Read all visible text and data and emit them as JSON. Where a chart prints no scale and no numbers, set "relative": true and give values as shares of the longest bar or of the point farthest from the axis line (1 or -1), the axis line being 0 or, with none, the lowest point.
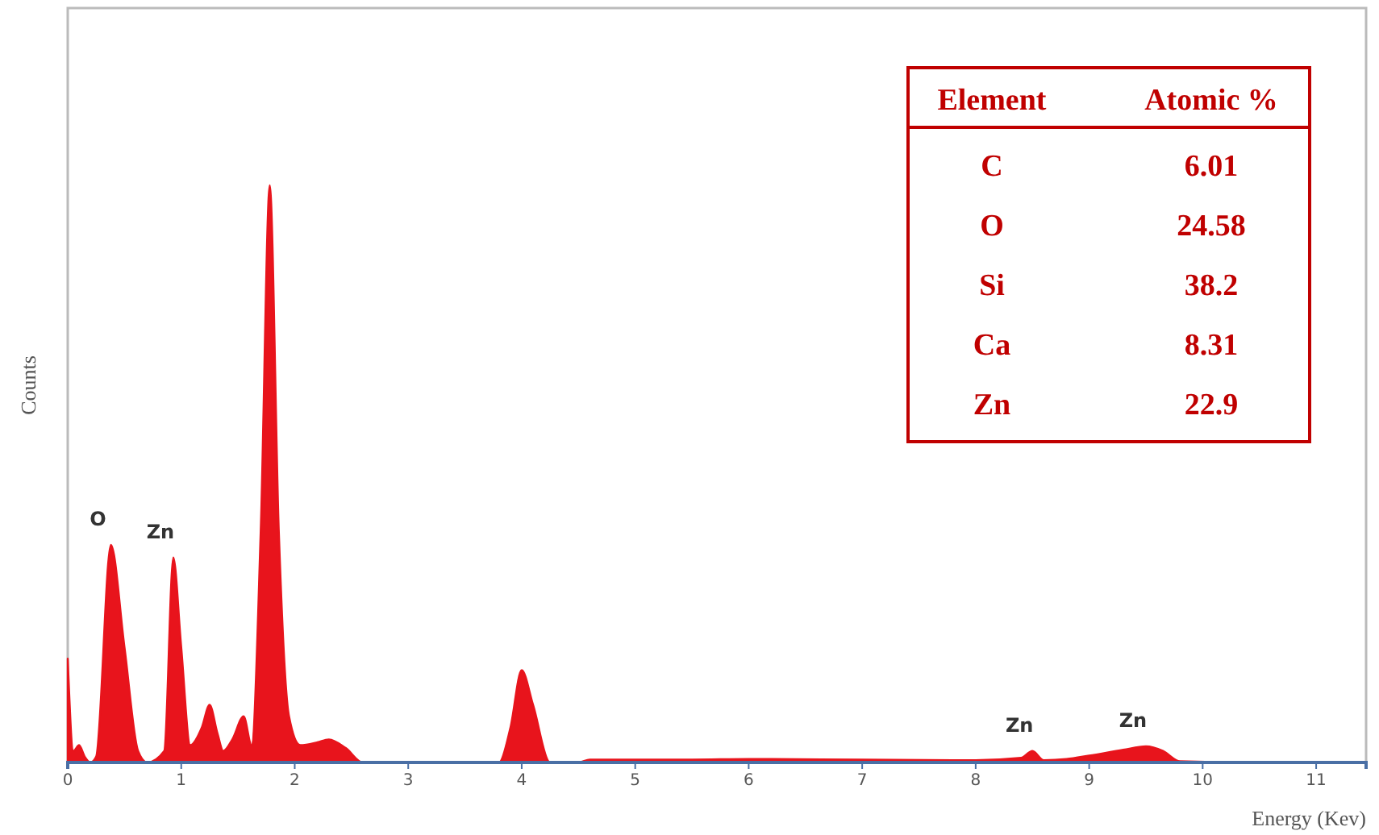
{
  "chart_data": [
    {
      "type": "area",
      "relative": true,
      "xlabel": "Energy (Kev)",
      "ylabel": "Counts",
      "xlim": [
        0,
        11.44
      ],
      "xticks": [
        0,
        1,
        2,
        3,
        4,
        5,
        6,
        7,
        8,
        9,
        10,
        11
      ],
      "grid": false,
      "series": [
        {
          "color": "#e8141c",
          "x": [
            0,
            0.05,
            0.1,
            0.15,
            0.2,
            0.25,
            0.38,
            0.5,
            0.62,
            0.7,
            0.85,
            0.93,
            1.0,
            1.08,
            1.18,
            1.25,
            1.32,
            1.37,
            1.45,
            1.55,
            1.62,
            1.7,
            1.78,
            1.86,
            1.95,
            2.05,
            2.2,
            2.3,
            2.45,
            2.6,
            3.0,
            3.8,
            3.9,
            4.0,
            4.1,
            4.25,
            4.5,
            4.6,
            5.5,
            6,
            7,
            8,
            8.4,
            8.5,
            8.6,
            8.8,
            9.0,
            9.3,
            9.5,
            9.65,
            9.8,
            10.5,
            11.44
          ],
          "values": [
            0.18,
            0.02,
            0.03,
            0.01,
            0,
            0.01,
            0.377,
            0.2,
            0.02,
            0,
            0.02,
            0.355,
            0.2,
            0.03,
            0.06,
            0.1,
            0.05,
            0.02,
            0.04,
            0.08,
            0.03,
            0.4,
            1,
            0.4,
            0.08,
            0.03,
            0.035,
            0.04,
            0.025,
            0,
            0,
            0,
            0.06,
            0.16,
            0.1,
            0,
            0,
            0.005,
            0.005,
            0.006,
            0.005,
            0.004,
            0.008,
            0.02,
            0.004,
            0.006,
            0.012,
            0.022,
            0.028,
            0.02,
            0.002,
            0,
            0
          ]
        }
      ],
      "annotations": [
        {
          "text": "O",
          "x": 0.38,
          "y": 0.377
        },
        {
          "text": "Zn",
          "x": 0.93,
          "y": 0.355
        },
        {
          "text": "Zn",
          "x": 8.5,
          "y": 0.02
        },
        {
          "text": "Zn",
          "x": 9.5,
          "y": 0.028
        }
      ]
    },
    {
      "type": "other",
      "data_labels": true,
      "xlabel": "Element",
      "ylabel": "Atomic %",
      "categories": [
        "C",
        "O",
        "Si",
        "Ca",
        "Zn"
      ],
      "values": [
        6.01,
        24.58,
        38.2,
        8.31,
        22.9
      ]
    }
  ]
}
